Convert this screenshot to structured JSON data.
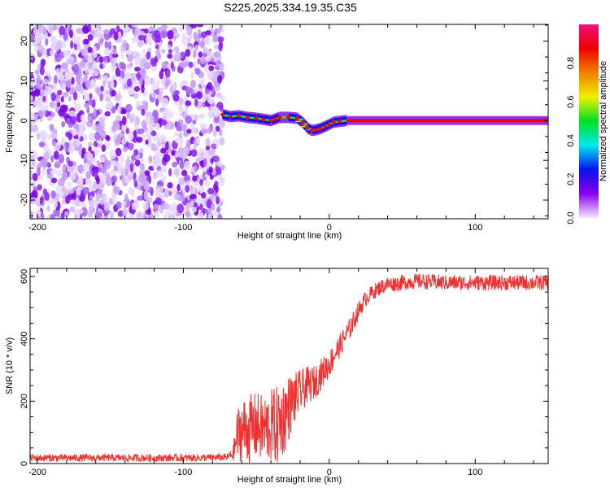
{
  "title": "S225.2025.334.19.35.C35",
  "chart_data": [
    {
      "type": "heatmap",
      "xlabel": "Height of straight line (km)",
      "ylabel": "Frequency (Hz)",
      "xlim": [
        -205,
        150
      ],
      "ylim": [
        -24.7,
        24.2
      ],
      "xticks": [
        -200,
        -100,
        0,
        100
      ],
      "yticks": [
        -20,
        -10,
        0,
        10,
        20
      ],
      "noise_region_xmax": -75,
      "track": {
        "x": [
          -73,
          -68,
          -62,
          -56,
          -50,
          -45,
          -40,
          -37,
          -34,
          -28,
          -22,
          -18,
          -15,
          -12,
          -9,
          -6,
          -3,
          0,
          3,
          7,
          12,
          150
        ],
        "freq": [
          1.5,
          1.0,
          1.2,
          0.8,
          0.6,
          0.3,
          0.0,
          0.4,
          0.8,
          0.8,
          0.6,
          -0.5,
          -1.8,
          -2.5,
          -2.3,
          -2.0,
          -1.5,
          -1.0,
          -0.4,
          -0.2,
          0.0,
          0.0
        ]
      },
      "colorbar": {
        "label": "Normalized spectral amplitude",
        "ticks": [
          "0.0",
          "0.2",
          "0.4",
          "0.6",
          "0.8"
        ],
        "range": [
          0,
          1
        ],
        "colors": [
          "#f4e8ff",
          "#8a00f0",
          "#0a10f0",
          "#00e8f0",
          "#00e020",
          "#f0f000",
          "#f08000",
          "#f00000",
          "#f0107f"
        ]
      }
    },
    {
      "type": "line",
      "xlabel": "Height of straight line (km)",
      "ylabel": "SNR (10 * v/v)",
      "xlim": [
        -205,
        150
      ],
      "ylim": [
        0,
        626
      ],
      "xticks": [
        -200,
        -100,
        0,
        100
      ],
      "yticks": [
        0,
        200,
        400,
        600
      ],
      "series": [
        {
          "name": "SNR",
          "color": "#f03030",
          "x": [
            -205,
            -180,
            -150,
            -120,
            -90,
            -70,
            -66,
            -63,
            -60,
            -55,
            -50,
            -45,
            -40,
            -35,
            -30,
            -25,
            -20,
            -15,
            -10,
            -5,
            0,
            5,
            10,
            15,
            20,
            25,
            30,
            35,
            40,
            50,
            60,
            80,
            100,
            120,
            150
          ],
          "mean": [
            18,
            18,
            18,
            18,
            18,
            20,
            30,
            90,
            110,
            110,
            120,
            110,
            120,
            120,
            160,
            200,
            230,
            250,
            260,
            290,
            320,
            360,
            400,
            440,
            490,
            530,
            550,
            565,
            575,
            580,
            585,
            580,
            580,
            580,
            580
          ],
          "spread": [
            12,
            12,
            12,
            12,
            12,
            12,
            20,
            90,
            100,
            110,
            110,
            110,
            120,
            130,
            120,
            90,
            70,
            60,
            55,
            50,
            45,
            40,
            35,
            35,
            30,
            25,
            25,
            25,
            25,
            25,
            25,
            25,
            25,
            25,
            25
          ]
        }
      ]
    }
  ]
}
